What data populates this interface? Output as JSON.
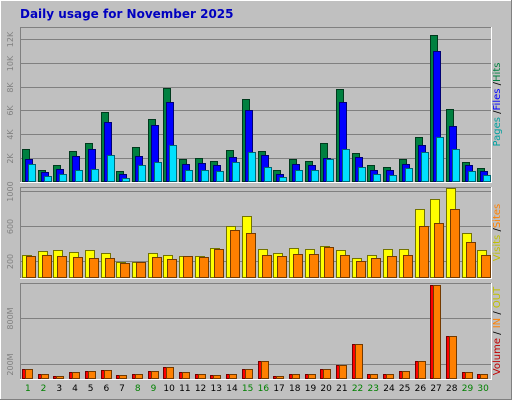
{
  "window": {
    "title": "Daily usage for November 2025"
  },
  "colors": {
    "background": "#c0c0c0",
    "pages": "#00e0ff",
    "files": "#0000ff",
    "hits": "#008040",
    "visits": "#ffff00",
    "sites": "#ff8000",
    "kbytes": "#ff0000",
    "in": "#ff8000",
    "out": "#ffff00"
  },
  "chart_data": [
    {
      "type": "bar",
      "panel": "hits-files-pages",
      "categories": [
        "1",
        "2",
        "3",
        "4",
        "5",
        "6",
        "7",
        "8",
        "9",
        "10",
        "11",
        "12",
        "13",
        "14",
        "15",
        "16",
        "17",
        "18",
        "19",
        "20",
        "21",
        "22",
        "23",
        "24",
        "25",
        "26",
        "27",
        "28",
        "29",
        "30"
      ],
      "weekend_days": [
        "1",
        "2",
        "8",
        "9",
        "15",
        "16",
        "22",
        "23",
        "29",
        "30"
      ],
      "ylim": [
        0,
        13000
      ],
      "ytick_labels": [
        "2K",
        "4K",
        "6K",
        "8K",
        "10K",
        "12K"
      ],
      "ytick_values": [
        2000,
        4000,
        6000,
        8000,
        10000,
        12000
      ],
      "right_label": {
        "parts": [
          "Pages",
          " /",
          "Files",
          " /",
          "Hits"
        ],
        "colors": [
          "#00a0a0",
          "#000000",
          "#0000ff",
          "#000000",
          "#008040"
        ]
      },
      "series": [
        {
          "name": "Hits",
          "color": "#008040",
          "values": [
            2800,
            1000,
            1400,
            2600,
            3300,
            5900,
            900,
            2900,
            5300,
            7900,
            1900,
            2000,
            1800,
            2700,
            7000,
            2600,
            1000,
            1900,
            1800,
            3300,
            7800,
            2400,
            1400,
            1300,
            1900,
            3800,
            12300,
            6100,
            1700,
            1200
          ]
        },
        {
          "name": "Files",
          "color": "#0000ff",
          "values": [
            1900,
            800,
            1100,
            2200,
            2800,
            5000,
            700,
            2200,
            4800,
            6700,
            1500,
            1600,
            1400,
            2100,
            6000,
            2300,
            700,
            1500,
            1400,
            2000,
            6700,
            2100,
            1000,
            1000,
            1500,
            3100,
            11000,
            4700,
            1400,
            900
          ]
        },
        {
          "name": "Pages",
          "color": "#00e0ff",
          "values": [
            1500,
            500,
            700,
            1000,
            1100,
            2300,
            300,
            1400,
            1700,
            3100,
            1000,
            1000,
            900,
            1700,
            2500,
            1300,
            400,
            1000,
            1000,
            1900,
            2800,
            1300,
            700,
            600,
            1200,
            2500,
            3800,
            2800,
            900,
            600
          ]
        }
      ]
    },
    {
      "type": "bar",
      "panel": "visits-sites",
      "categories": [
        "1",
        "2",
        "3",
        "4",
        "5",
        "6",
        "7",
        "8",
        "9",
        "10",
        "11",
        "12",
        "13",
        "14",
        "15",
        "16",
        "17",
        "18",
        "19",
        "20",
        "21",
        "22",
        "23",
        "24",
        "25",
        "26",
        "27",
        "28",
        "29",
        "30"
      ],
      "ylim": [
        0,
        1050
      ],
      "ytick_labels": [
        "200",
        "600",
        "1000"
      ],
      "ytick_values": [
        200,
        600,
        1000
      ],
      "right_label": {
        "parts": [
          "Visits",
          " /",
          "Sites"
        ],
        "colors": [
          "#c0c000",
          "#000000",
          "#ff8000"
        ]
      },
      "series": [
        {
          "name": "Visits",
          "color": "#ffff00",
          "values": [
            270,
            310,
            320,
            300,
            320,
            290,
            190,
            190,
            290,
            270,
            250,
            250,
            350,
            600,
            710,
            340,
            290,
            350,
            330,
            370,
            320,
            230,
            260,
            340,
            330,
            800,
            910,
            1040,
            520,
            320
          ]
        },
        {
          "name": "Sites",
          "color": "#ff8000",
          "values": [
            250,
            260,
            250,
            240,
            230,
            230,
            170,
            190,
            240,
            220,
            250,
            240,
            330,
            550,
            520,
            270,
            250,
            280,
            280,
            360,
            260,
            200,
            230,
            250,
            260,
            600,
            640,
            800,
            420,
            270
          ]
        }
      ]
    },
    {
      "type": "bar",
      "panel": "volume-in-out",
      "categories": [
        "1",
        "2",
        "3",
        "4",
        "5",
        "6",
        "7",
        "8",
        "9",
        "10",
        "11",
        "12",
        "13",
        "14",
        "15",
        "16",
        "17",
        "18",
        "19",
        "20",
        "21",
        "22",
        "23",
        "24",
        "25",
        "26",
        "27",
        "28",
        "29",
        "30"
      ],
      "ylim": [
        0,
        1250
      ],
      "ytick_labels": [
        "200M",
        "800M"
      ],
      "ytick_values": [
        200,
        800
      ],
      "right_label": {
        "parts": [
          "Volume",
          " / ",
          "IN",
          " / ",
          "OUT"
        ],
        "colors": [
          "#c00000",
          "#000000",
          "#ff8000",
          "#000000",
          "#c0c000"
        ]
      },
      "series": [
        {
          "name": "Volume",
          "color": "#ff0000",
          "values": [
            130,
            60,
            40,
            90,
            110,
            120,
            50,
            60,
            100,
            160,
            90,
            70,
            50,
            60,
            130,
            230,
            40,
            70,
            70,
            130,
            180,
            460,
            70,
            70,
            100,
            240,
            1220,
            560,
            90,
            60
          ]
        },
        {
          "name": "IN",
          "color": "#ff8000",
          "values": [
            130,
            60,
            40,
            90,
            110,
            120,
            50,
            60,
            100,
            160,
            90,
            70,
            50,
            60,
            130,
            230,
            40,
            70,
            70,
            130,
            180,
            460,
            70,
            70,
            100,
            240,
            1220,
            560,
            90,
            60
          ]
        },
        {
          "name": "OUT",
          "color": "#ffff00",
          "values": [
            0,
            0,
            0,
            0,
            0,
            0,
            0,
            0,
            0,
            0,
            0,
            0,
            0,
            0,
            0,
            0,
            0,
            0,
            0,
            0,
            0,
            0,
            0,
            0,
            0,
            0,
            0,
            0,
            0,
            0
          ]
        }
      ]
    }
  ]
}
